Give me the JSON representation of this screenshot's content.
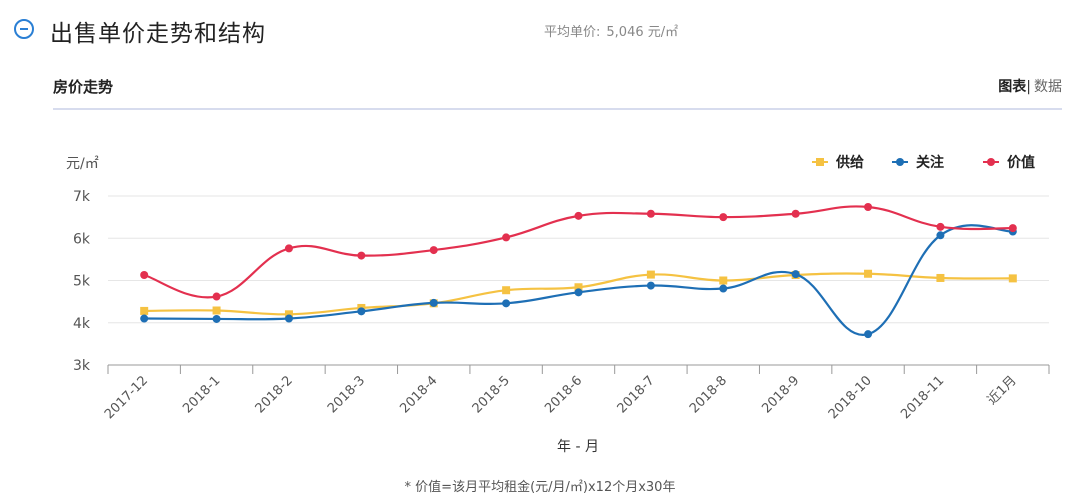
{
  "header": {
    "title": "出售单价走势和结构",
    "avg_label": "平均单价:",
    "avg_value": "5,046 元/㎡"
  },
  "section": {
    "title": "房价走势",
    "tab_chart": "图表",
    "tab_sep": "|",
    "tab_data": "数据"
  },
  "chart_data": {
    "type": "line",
    "ylabel": "元/㎡",
    "xlabel": "年 - 月",
    "ylim": [
      3000,
      7000
    ],
    "yticks": [
      "3k",
      "4k",
      "5k",
      "6k",
      "7k"
    ],
    "categories": [
      "2017-12",
      "2018-1",
      "2018-2",
      "2018-3",
      "2018-4",
      "2018-5",
      "2018-6",
      "2018-7",
      "2018-8",
      "2018-9",
      "2018-10",
      "2018-11",
      "近1月"
    ],
    "legend_position": "top-right",
    "grid": true,
    "series": [
      {
        "name": "供给",
        "color": "#f5c242",
        "marker": "square",
        "values": [
          4280,
          4290,
          4200,
          4350,
          4460,
          4770,
          4840,
          5140,
          5000,
          5130,
          5160,
          5060,
          5050
        ]
      },
      {
        "name": "关注",
        "color": "#1e6fb5",
        "marker": "circle",
        "values": [
          4100,
          4090,
          4100,
          4270,
          4470,
          4460,
          4720,
          4880,
          4810,
          5150,
          3730,
          6070,
          6160
        ]
      },
      {
        "name": "价值",
        "color": "#e3304f",
        "marker": "circle",
        "values": [
          5130,
          4620,
          5760,
          5590,
          5720,
          6020,
          6530,
          6580,
          6500,
          6580,
          6740,
          6270,
          6240
        ]
      }
    ]
  },
  "footnote": "* 价值=该月平均租金(元/月/㎡)x12个月x30年"
}
